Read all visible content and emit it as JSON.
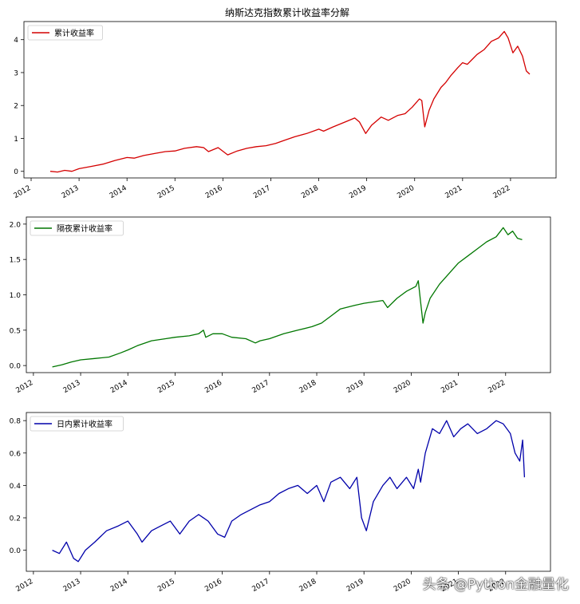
{
  "title": "纳斯达克指数累计收益率分解",
  "watermark": "头条 @Python金融量化",
  "chart_data": [
    {
      "type": "line",
      "x_tick_labels": [
        "2012",
        "2013",
        "2014",
        "2015",
        "2016",
        "2017",
        "2018",
        "2019",
        "2020",
        "2021",
        "2022"
      ],
      "x_range": [
        2011.85,
        2022.95
      ],
      "ylim": [
        -0.2,
        4.55
      ],
      "y_ticks": [
        0,
        1,
        2,
        3,
        4
      ],
      "legend": "top-left",
      "grid": false,
      "series": [
        {
          "name": "累计收益率",
          "color": "#d40000",
          "x": [
            2012.4,
            2012.55,
            2012.7,
            2012.85,
            2013.0,
            2013.25,
            2013.5,
            2013.75,
            2014.0,
            2014.15,
            2014.35,
            2014.6,
            2014.8,
            2015.0,
            2015.2,
            2015.45,
            2015.6,
            2015.7,
            2015.9,
            2016.1,
            2016.3,
            2016.5,
            2016.7,
            2016.9,
            2017.1,
            2017.3,
            2017.5,
            2017.75,
            2018.0,
            2018.1,
            2018.3,
            2018.55,
            2018.75,
            2018.85,
            2018.98,
            2019.1,
            2019.3,
            2019.45,
            2019.65,
            2019.8,
            2019.95,
            2020.1,
            2020.15,
            2020.21,
            2020.3,
            2020.4,
            2020.55,
            2020.65,
            2020.75,
            2020.9,
            2021.0,
            2021.1,
            2021.2,
            2021.3,
            2021.45,
            2021.6,
            2021.75,
            2021.87,
            2021.95,
            2022.05,
            2022.15,
            2022.25,
            2022.33,
            2022.4
          ],
          "values": [
            0.0,
            -0.02,
            0.03,
            0.0,
            0.08,
            0.15,
            0.22,
            0.33,
            0.42,
            0.4,
            0.48,
            0.55,
            0.6,
            0.62,
            0.7,
            0.75,
            0.72,
            0.6,
            0.72,
            0.5,
            0.62,
            0.7,
            0.75,
            0.78,
            0.85,
            0.95,
            1.05,
            1.15,
            1.28,
            1.22,
            1.35,
            1.5,
            1.62,
            1.5,
            1.15,
            1.4,
            1.65,
            1.55,
            1.7,
            1.75,
            1.95,
            2.2,
            2.15,
            1.35,
            1.85,
            2.2,
            2.55,
            2.7,
            2.9,
            3.15,
            3.3,
            3.25,
            3.4,
            3.55,
            3.7,
            3.95,
            4.05,
            4.25,
            4.05,
            3.6,
            3.8,
            3.5,
            3.05,
            2.95
          ]
        }
      ]
    },
    {
      "type": "line",
      "x_tick_labels": [
        "2012",
        "2013",
        "2014",
        "2015",
        "2016",
        "2017",
        "2018",
        "2019",
        "2020",
        "2021",
        "2022"
      ],
      "x_range": [
        2011.85,
        2022.95
      ],
      "ylim": [
        -0.1,
        2.1
      ],
      "y_ticks": [
        0.0,
        0.5,
        1.0,
        1.5,
        2.0
      ],
      "legend": "top-left",
      "grid": false,
      "series": [
        {
          "name": "隔夜累计收益率",
          "color": "#007700",
          "x": [
            2012.4,
            2012.6,
            2012.8,
            2013.0,
            2013.3,
            2013.6,
            2013.85,
            2014.0,
            2014.2,
            2014.5,
            2014.8,
            2015.0,
            2015.3,
            2015.5,
            2015.6,
            2015.65,
            2015.8,
            2016.0,
            2016.2,
            2016.5,
            2016.7,
            2016.8,
            2017.0,
            2017.3,
            2017.6,
            2017.9,
            2018.1,
            2018.3,
            2018.5,
            2018.8,
            2019.0,
            2019.2,
            2019.4,
            2019.5,
            2019.7,
            2019.9,
            2020.1,
            2020.15,
            2020.2,
            2020.25,
            2020.3,
            2020.4,
            2020.6,
            2020.8,
            2021.0,
            2021.2,
            2021.4,
            2021.6,
            2021.8,
            2021.95,
            2022.05,
            2022.15,
            2022.25,
            2022.35
          ],
          "values": [
            -0.02,
            0.01,
            0.05,
            0.08,
            0.1,
            0.12,
            0.18,
            0.22,
            0.28,
            0.35,
            0.38,
            0.4,
            0.42,
            0.45,
            0.5,
            0.4,
            0.45,
            0.45,
            0.4,
            0.38,
            0.32,
            0.35,
            0.38,
            0.45,
            0.5,
            0.55,
            0.6,
            0.7,
            0.8,
            0.85,
            0.88,
            0.9,
            0.92,
            0.82,
            0.95,
            1.05,
            1.12,
            1.2,
            0.9,
            0.6,
            0.75,
            0.95,
            1.15,
            1.3,
            1.45,
            1.55,
            1.65,
            1.75,
            1.82,
            1.95,
            1.85,
            1.9,
            1.8,
            1.78
          ]
        }
      ]
    },
    {
      "type": "line",
      "x_tick_labels": [
        "2012",
        "2013",
        "2014",
        "2015",
        "2016",
        "2017",
        "2018",
        "2019",
        "2020",
        "2021",
        "2022"
      ],
      "x_range": [
        2011.85,
        2022.95
      ],
      "ylim": [
        -0.13,
        0.85
      ],
      "y_ticks": [
        0.0,
        0.2,
        0.4,
        0.6,
        0.8
      ],
      "legend": "top-left",
      "grid": false,
      "series": [
        {
          "name": "日内累计收益率",
          "color": "#0000aa",
          "x": [
            2012.4,
            2012.55,
            2012.7,
            2012.85,
            2012.95,
            2013.1,
            2013.3,
            2013.55,
            2013.8,
            2014.0,
            2014.2,
            2014.3,
            2014.5,
            2014.7,
            2014.9,
            2015.1,
            2015.3,
            2015.5,
            2015.7,
            2015.9,
            2016.05,
            2016.2,
            2016.4,
            2016.6,
            2016.8,
            2017.0,
            2017.2,
            2017.4,
            2017.6,
            2017.8,
            2018.0,
            2018.15,
            2018.3,
            2018.5,
            2018.7,
            2018.85,
            2018.95,
            2019.05,
            2019.2,
            2019.4,
            2019.55,
            2019.7,
            2019.9,
            2020.05,
            2020.15,
            2020.2,
            2020.3,
            2020.45,
            2020.6,
            2020.75,
            2020.9,
            2021.05,
            2021.2,
            2021.4,
            2021.6,
            2021.8,
            2021.95,
            2022.1,
            2022.2,
            2022.3,
            2022.36,
            2022.4
          ],
          "values": [
            0.0,
            -0.02,
            0.05,
            -0.05,
            -0.07,
            0.0,
            0.05,
            0.12,
            0.15,
            0.18,
            0.1,
            0.05,
            0.12,
            0.15,
            0.18,
            0.1,
            0.18,
            0.22,
            0.18,
            0.1,
            0.08,
            0.18,
            0.22,
            0.25,
            0.28,
            0.3,
            0.35,
            0.38,
            0.4,
            0.35,
            0.4,
            0.3,
            0.42,
            0.45,
            0.38,
            0.45,
            0.2,
            0.12,
            0.3,
            0.4,
            0.45,
            0.38,
            0.45,
            0.38,
            0.5,
            0.42,
            0.6,
            0.75,
            0.72,
            0.8,
            0.7,
            0.75,
            0.78,
            0.72,
            0.75,
            0.8,
            0.78,
            0.72,
            0.6,
            0.55,
            0.68,
            0.45
          ]
        }
      ]
    }
  ]
}
